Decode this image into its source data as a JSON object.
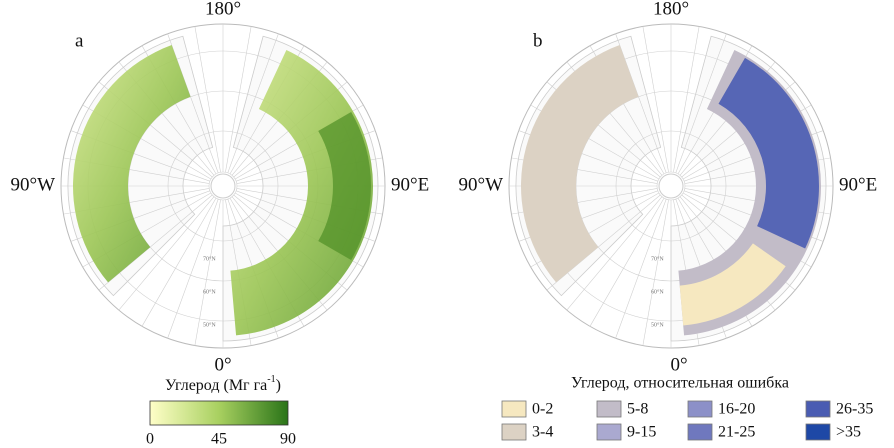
{
  "panels": [
    {
      "label": "a",
      "top": "180°",
      "left": "90°W",
      "right": "90°E",
      "bottom": "0°",
      "lat_labels": [
        "70°N",
        "60°N",
        "50°N"
      ]
    },
    {
      "label": "b",
      "top": "180°",
      "left": "90°W",
      "right": "90°E",
      "bottom": "0°",
      "lat_labels": [
        "70°N",
        "60°N",
        "50°N"
      ]
    }
  ],
  "colorbar": {
    "title": "Углерод (Мг га",
    "title_sup": "-1",
    "title_end": ")",
    "ticks": [
      0,
      45,
      90
    ],
    "colors": [
      "#ffffc8",
      "#a8d060",
      "#2a7418"
    ]
  },
  "legend": {
    "title": "Углерод, относительная ошибка",
    "items": [
      {
        "label": "0-2",
        "color": "#f6e8c0"
      },
      {
        "label": "3-4",
        "color": "#dcd2c4"
      },
      {
        "label": "5-8",
        "color": "#c2bcc8"
      },
      {
        "label": "9-15",
        "color": "#aaa9d0"
      },
      {
        "label": "16-20",
        "color": "#8c90c8"
      },
      {
        "label": "21-25",
        "color": "#6f78be"
      },
      {
        "label": "26-35",
        "color": "#4a5cb2"
      },
      {
        "label": ">35",
        "color": "#1e48a6"
      }
    ]
  }
}
